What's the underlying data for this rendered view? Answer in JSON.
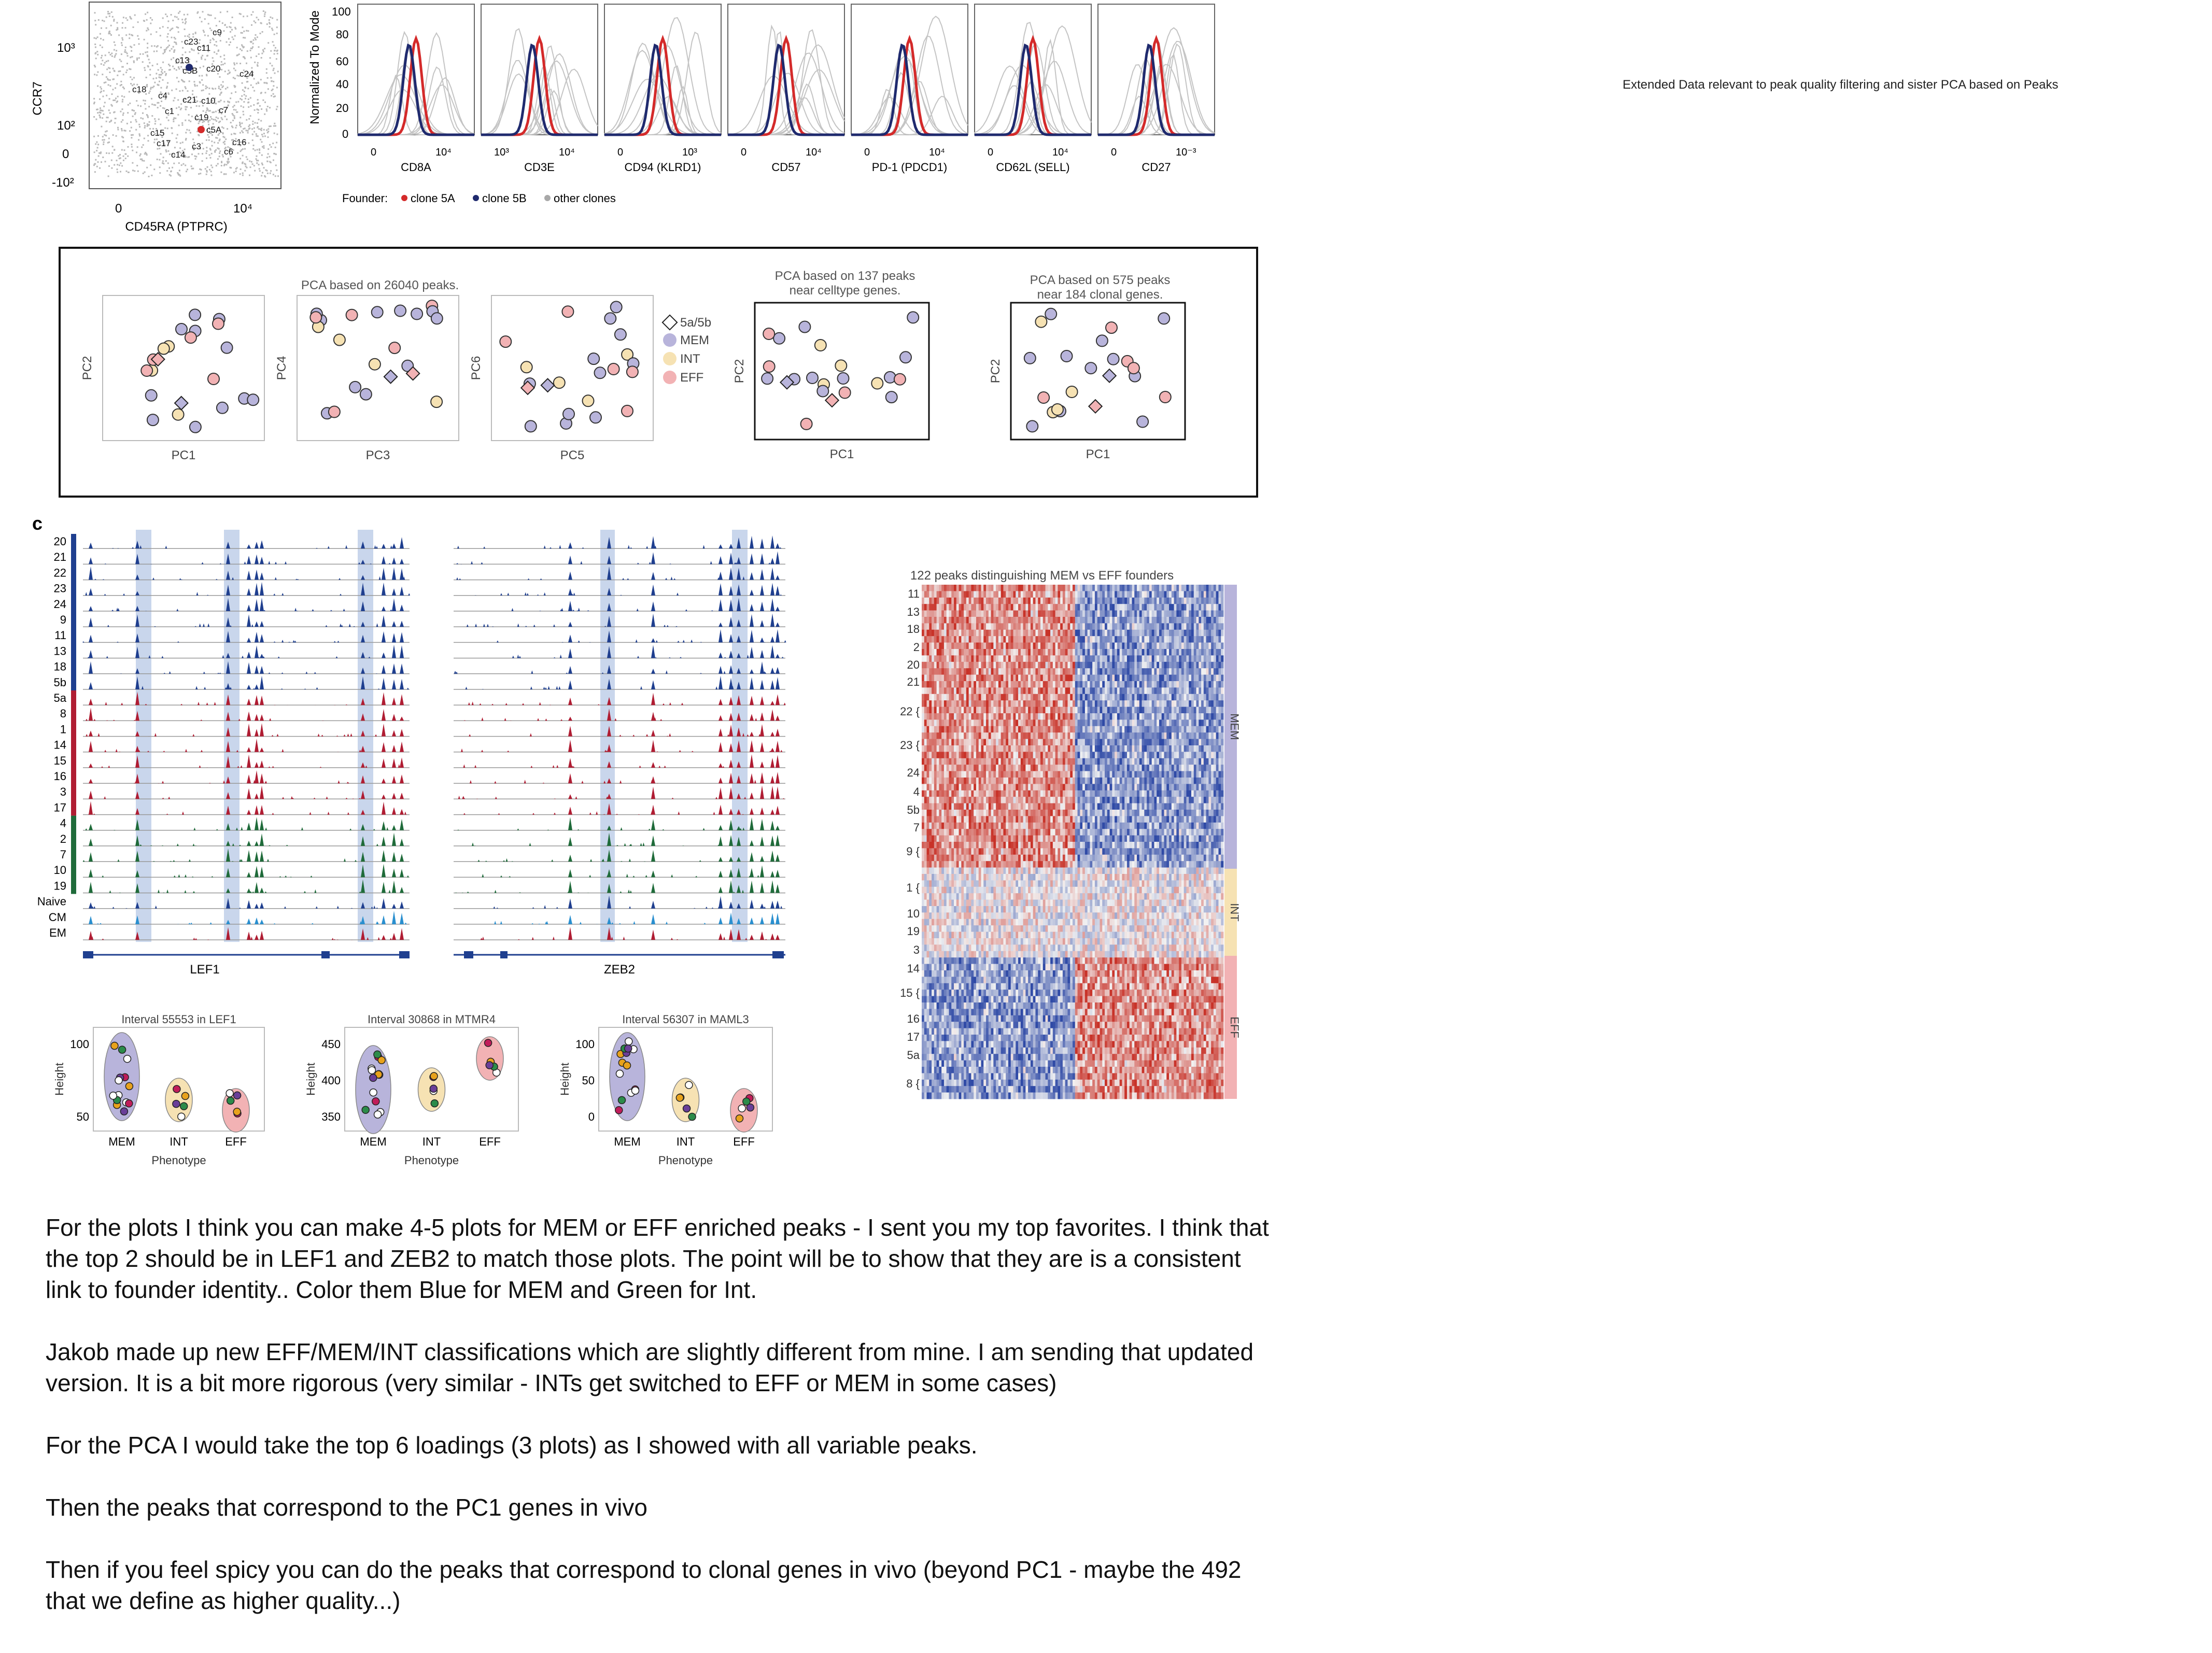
{
  "caption": "Extended Data relevant to peak quality filtering and sister PCA based on Peaks",
  "panel_c_letter": "c",
  "colors": {
    "mem": "#b8b4db",
    "int": "#f6e2b3",
    "eff": "#f2b2b4",
    "clone5a": "#d42a2a",
    "clone5b": "#1f2a6e",
    "other": "#a8a8a8",
    "heat_red": "#c83228",
    "heat_blue": "#2f4aa6",
    "track_blue": "#1f3f8f",
    "track_red": "#b01d33",
    "track_green": "#1f6b3a",
    "track_sky": "#2a8fcf",
    "highlight": "#c9d6ec"
  },
  "scatter": {
    "ylabel": "CCR7",
    "xlabel": "CD45RA (PTPRC)",
    "yticks": [
      "10³",
      "10²",
      "0",
      "-10²"
    ],
    "xticks": [
      "0",
      "10⁴"
    ],
    "clones": [
      "c9",
      "c23",
      "c11",
      "c13",
      "c5B",
      "c20",
      "c24",
      "c18",
      "c4",
      "c21",
      "c10",
      "c7",
      "c1",
      "c19",
      "c15",
      "c5A",
      "c17",
      "c3",
      "c16",
      "c6",
      "c14"
    ]
  },
  "histograms": {
    "ylabel": "Normalized To Mode",
    "yticks": [
      "100",
      "80",
      "60",
      "40",
      "20",
      "0"
    ],
    "markers": [
      "CD8A",
      "CD3E",
      "CD94 (KLRD1)",
      "CD57",
      "PD-1 (PDCD1)",
      "CD62L (SELL)",
      "CD27"
    ],
    "xticks": [
      [
        "0",
        "10⁴"
      ],
      [
        "10³",
        "10⁴"
      ],
      [
        "0",
        "10³"
      ],
      [
        "0",
        "10⁴"
      ],
      [
        "0",
        "10⁴"
      ],
      [
        "0",
        "10⁴"
      ],
      [
        "0",
        "10⁻³"
      ]
    ]
  },
  "legend_founder": {
    "title": "Founder:",
    "items": [
      "clone 5A",
      "clone 5B",
      "other clones"
    ]
  },
  "pca_box": {
    "title_all": "PCA based on 26040 peaks.",
    "title_celltype": [
      "PCA based on 137 peaks",
      "near celltype genes."
    ],
    "title_clonal": [
      "PCA based on 575 peaks",
      "near 184 clonal genes."
    ],
    "axes": [
      [
        "PC1",
        "PC2"
      ],
      [
        "PC3",
        "PC4"
      ],
      [
        "PC5",
        "PC6"
      ],
      [
        "PC1",
        "PC2"
      ],
      [
        "PC1",
        "PC2"
      ]
    ],
    "legend": [
      "5a/5b",
      "MEM",
      "INT",
      "EFF"
    ]
  },
  "tracks": {
    "rows": [
      "20",
      "21",
      "22",
      "23",
      "24",
      "9",
      "11",
      "13",
      "18",
      "5b",
      "5a",
      "8",
      "1",
      "14",
      "15",
      "16",
      "3",
      "17",
      "4",
      "2",
      "7",
      "10",
      "19",
      "Naive",
      "CM",
      "EM"
    ],
    "genes": [
      "LEF1",
      "ZEB2"
    ]
  },
  "heatmap": {
    "title": "122 peaks distinguishing MEM vs EFF founders",
    "rows": [
      "11",
      "13",
      "18",
      "2",
      "20",
      "21",
      "22 {",
      "23 {",
      "24",
      "4",
      "5b",
      "7",
      "9 {",
      "1 {",
      "10",
      "19",
      "3",
      "14",
      "15 {",
      "16",
      "17",
      "5a",
      "8 {"
    ],
    "groups": [
      "MEM",
      "INT",
      "EFF"
    ]
  },
  "violins": [
    {
      "title": "Interval 55553 in LEF1",
      "yticks": [
        "100",
        "50"
      ],
      "ylabel": "Height",
      "xlabel": "Phenotype",
      "cats": [
        "MEM",
        "INT",
        "EFF"
      ]
    },
    {
      "title": "Interval 30868 in MTMR4",
      "yticks": [
        "450",
        "400",
        "350"
      ],
      "ylabel": "Height",
      "xlabel": "Phenotype",
      "cats": [
        "MEM",
        "INT",
        "EFF"
      ]
    },
    {
      "title": "Interval 56307 in MAML3",
      "yticks": [
        "100",
        "50",
        "0"
      ],
      "ylabel": "Height",
      "xlabel": "Phenotype",
      "cats": [
        "MEM",
        "INT",
        "EFF"
      ]
    }
  ],
  "notes": [
    "For the plots I think you can make 4-5 plots for MEM or EFF enriched peaks - I sent you my top favorites.  I think that the top 2 should be in LEF1 and ZEB2 to match those plots.  The point will be to show that they are is a consistent link to founder identity..  Color them Blue for MEM and Green for Int.",
    "Jakob made up new EFF/MEM/INT classifications which are slightly different from mine.  I am sending that updated version.  It is a bit more rigorous (very similar - INTs get switched to EFF or MEM in some cases)",
    "For the PCA I would take the top 6 loadings (3 plots) as I showed with all variable peaks.",
    "Then the peaks that correspond to the PC1 genes in vivo",
    "Then if you feel spicy you can do the peaks that correspond to clonal genes in vivo (beyond PC1 - maybe the 492 that we define as higher quality...)"
  ]
}
